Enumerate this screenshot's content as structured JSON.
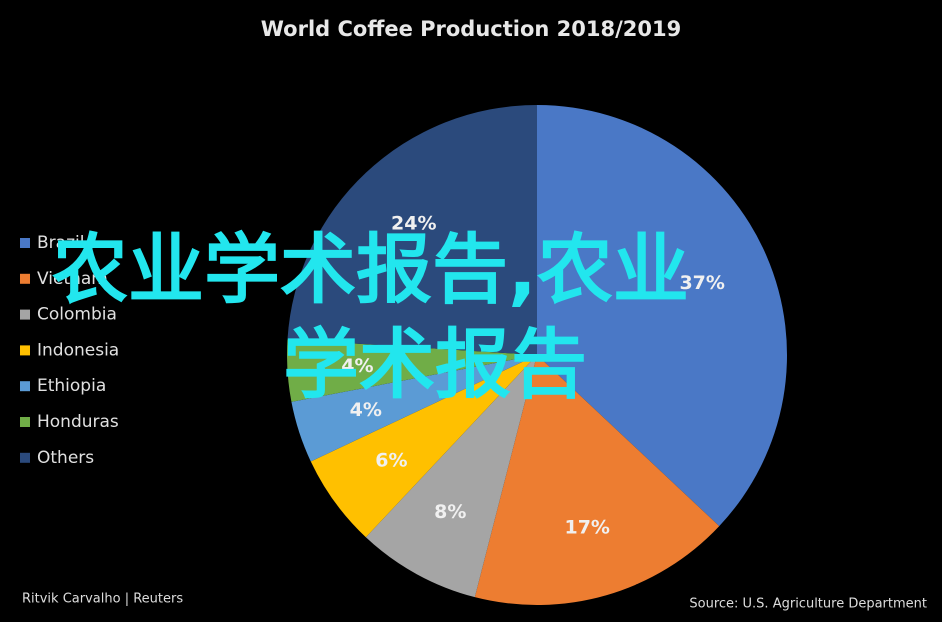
{
  "chart_data": {
    "type": "pie",
    "title": "World Coffee Production 2018/2019",
    "categories": [
      "Brazil",
      "Vietnam",
      "Colombia",
      "Indonesia",
      "Ethiopia",
      "Honduras",
      "Others"
    ],
    "values": [
      37,
      17,
      8,
      6,
      4,
      4,
      24
    ],
    "value_labels": [
      "37%",
      "17%",
      "8%",
      "6%",
      "4%",
      "4%",
      "24%"
    ],
    "colors": [
      "#4a78c6",
      "#ed7d31",
      "#a5a5a5",
      "#ffc000",
      "#5b9bd5",
      "#70ad47",
      "#2b4a7c"
    ],
    "legend": "left",
    "credit": "Ritvik Carvalho | Reuters",
    "source": "Source: U.S. Agriculture Department",
    "watermark": [
      "农业学术报告,农业",
      "学术报告"
    ]
  }
}
